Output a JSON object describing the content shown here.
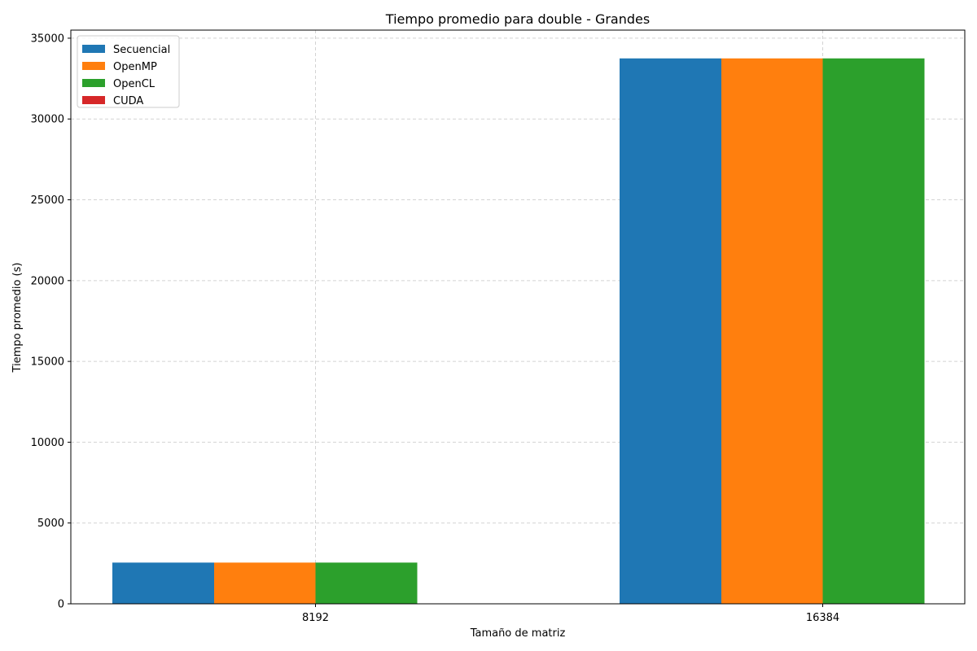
{
  "chart_data": {
    "type": "bar",
    "title": "Tiempo promedio para double - Grandes",
    "xlabel": "Tamaño de matriz",
    "ylabel": "Tiempo promedio (s)",
    "categories": [
      "8192",
      "16384"
    ],
    "ylim": [
      0,
      35500
    ],
    "yticks": [
      "0",
      "5000",
      "10000",
      "15000",
      "20000",
      "25000",
      "30000",
      "35000"
    ],
    "grid": true,
    "legend_position": "top-left",
    "series": [
      {
        "name": "Secuencial",
        "color": "#1f77b4",
        "values": [
          2550,
          33750
        ]
      },
      {
        "name": "OpenMP",
        "color": "#ff7f0e",
        "values": [
          2550,
          33750
        ]
      },
      {
        "name": "OpenCL",
        "color": "#2ca02c",
        "values": [
          2550,
          33750
        ]
      },
      {
        "name": "CUDA",
        "color": "#d62728",
        "values": [
          0,
          0
        ]
      }
    ]
  }
}
